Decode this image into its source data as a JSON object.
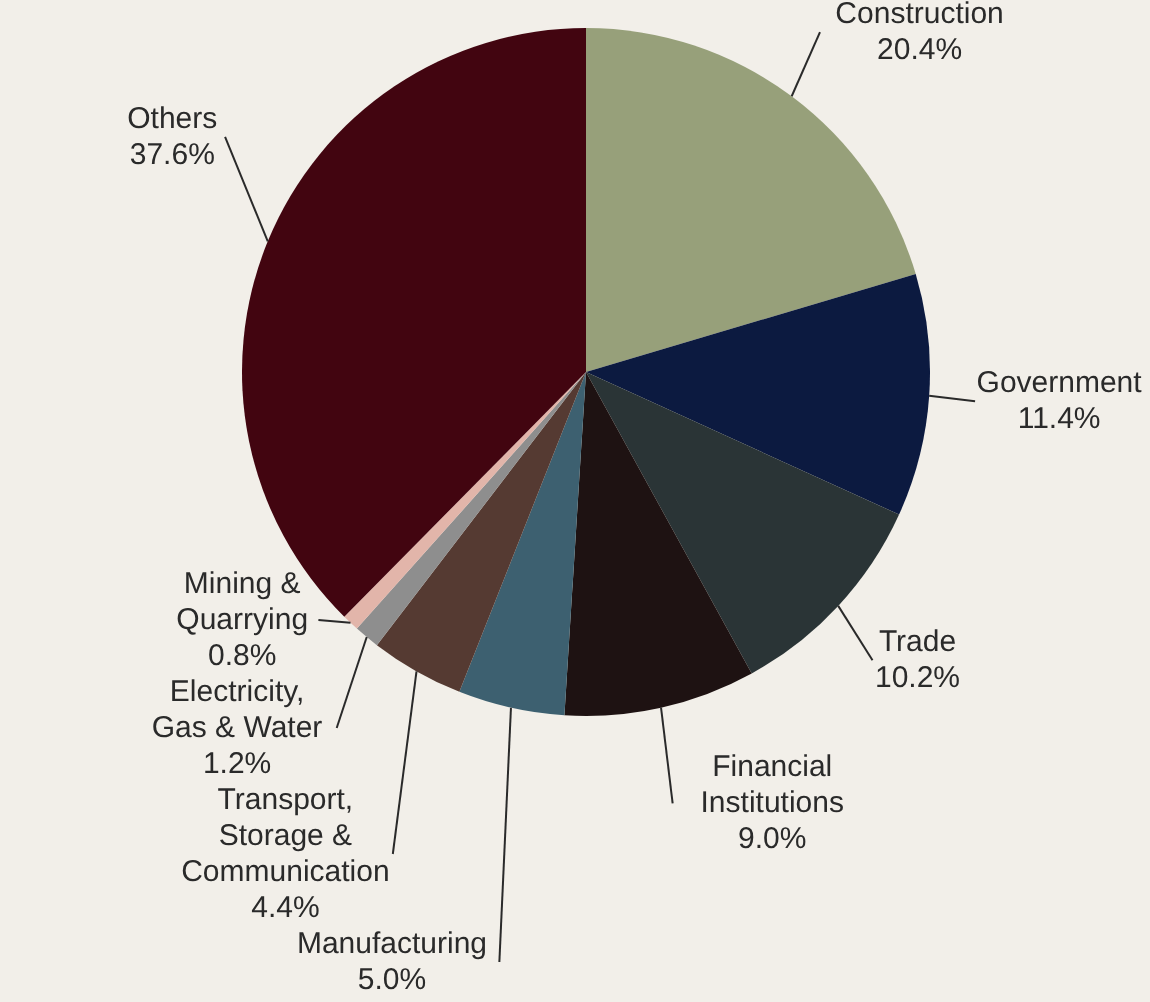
{
  "chart_data": {
    "type": "pie",
    "categories": [
      "Construction",
      "Government",
      "Trade",
      "Financial Institutions",
      "Manufacturing",
      "Transport, Storage & Communication",
      "Electricity, Gas & Water",
      "Mining & Quarrying",
      "Others"
    ],
    "values": [
      20.4,
      11.4,
      10.2,
      9.0,
      5.0,
      4.4,
      1.2,
      0.8,
      37.6
    ],
    "colors": [
      "#97a07a",
      "#0c1a40",
      "#2a3436",
      "#1e1212",
      "#3d6070",
      "#553a32",
      "#8e8e8e",
      "#e2b5aa",
      "#420510"
    ],
    "value_labels": [
      "20.4%",
      "11.4%",
      "10.2%",
      "9.0%",
      "5.0%",
      "4.4%",
      "1.2%",
      "0.8%",
      "37.6%"
    ]
  }
}
